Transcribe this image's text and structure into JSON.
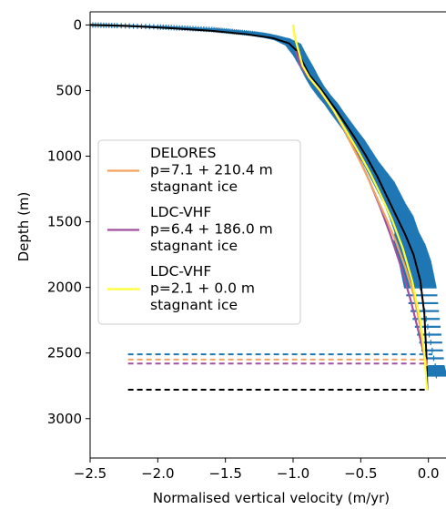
{
  "chart_data": {
    "type": "line",
    "xlabel": "Normalised vertical velocity (m/yr)",
    "ylabel": "Depth (m)",
    "xlim": [
      -2.5,
      0.13
    ],
    "ylim": [
      3300,
      -100
    ],
    "y_inverted": true,
    "x_ticks": [
      "−2.5",
      "−2.0",
      "−1.5",
      "−1.0",
      "−0.5",
      "0.0"
    ],
    "x_tick_values": [
      -2.5,
      -2.0,
      -1.5,
      -1.0,
      -0.5,
      0.0
    ],
    "y_ticks": [
      "0",
      "500",
      "1000",
      "1500",
      "2000",
      "2500",
      "3000"
    ],
    "y_tick_values": [
      0,
      500,
      1000,
      1500,
      2000,
      2500,
      3000
    ],
    "legend": {
      "placement": "center-left",
      "entries": [
        {
          "lines": [
            "DELORES",
            "p=7.1 + 210.4 m",
            "stagnant ice"
          ],
          "color": "#f4a460"
        },
        {
          "lines": [
            "LDC-VHF",
            "p=6.4 + 186.0 m",
            "stagnant ice"
          ],
          "color": "#a0509e"
        },
        {
          "lines": [
            "LDC-VHF",
            "p=2.1 + 0.0 m",
            "stagnant ice"
          ],
          "color": "#ffff33"
        }
      ]
    },
    "series": [
      {
        "style": "black solid",
        "color": "#000000",
        "x": [
          -2.5,
          -2.2,
          -1.9,
          -1.6,
          -1.35,
          -1.15,
          -1.03,
          -0.97,
          -0.93,
          -0.88,
          -0.8,
          -0.68,
          -0.55,
          -0.46,
          -0.38,
          -0.31,
          -0.24,
          -0.17,
          -0.11,
          -0.06,
          -0.03,
          -0.015,
          -0.008
        ],
        "y": [
          0,
          8,
          25,
          45,
          70,
          100,
          140,
          200,
          280,
          380,
          480,
          650,
          850,
          1000,
          1150,
          1300,
          1450,
          1600,
          1750,
          1950,
          2200,
          2500,
          2780
        ]
      },
      {
        "style": "delores orange",
        "color": "#f4a460",
        "x": [
          -1.0,
          -0.99,
          -0.96,
          -0.93,
          -0.88,
          -0.8,
          -0.7,
          -0.62,
          -0.56,
          -0.5,
          -0.44,
          -0.38,
          -0.31,
          -0.24,
          -0.17,
          -0.11,
          -0.06,
          -0.03,
          -0.01
        ],
        "y": [
          0,
          80,
          200,
          310,
          400,
          500,
          650,
          800,
          930,
          1050,
          1180,
          1320,
          1480,
          1650,
          1850,
          2050,
          2300,
          2520,
          2600
        ]
      },
      {
        "style": "ldc-vhf purple",
        "color": "#a0509e",
        "x": [
          -0.98,
          -0.95,
          -0.9,
          -0.82,
          -0.72,
          -0.62,
          -0.53,
          -0.44,
          -0.36,
          -0.28,
          -0.2,
          -0.13,
          -0.07,
          -0.03,
          -0.01
        ],
        "y": [
          200,
          300,
          380,
          480,
          620,
          800,
          980,
          1180,
          1380,
          1600,
          1850,
          2100,
          2350,
          2520,
          2580
        ]
      },
      {
        "style": "ldc-vhf yellow",
        "color": "#ffff33",
        "x": [
          -1.0,
          -0.99,
          -0.96,
          -0.93,
          -0.88,
          -0.8,
          -0.7,
          -0.6,
          -0.51,
          -0.43,
          -0.35,
          -0.27,
          -0.19,
          -0.12,
          -0.06,
          -0.03,
          -0.01
        ],
        "y": [
          0,
          80,
          200,
          310,
          400,
          500,
          650,
          820,
          980,
          1130,
          1300,
          1480,
          1700,
          1950,
          2250,
          2500,
          2780
        ]
      }
    ],
    "observations": {
      "color": "#1f77b4",
      "x": [
        -2.5,
        -2.3,
        -2.0,
        -1.8,
        -1.6,
        -1.45,
        -1.3,
        -1.18,
        -1.08,
        -1.0,
        -0.95,
        -0.9,
        -0.86,
        -0.82,
        -0.77,
        -0.72,
        -0.68,
        -0.63,
        -0.58,
        -0.53,
        -0.48,
        -0.43,
        -0.38,
        -0.33,
        -0.29,
        -0.25,
        -0.2,
        -0.16,
        -0.14,
        -0.1,
        -0.08,
        -0.06,
        0.05,
        0.06
      ],
      "y": [
        0,
        5,
        15,
        25,
        35,
        50,
        65,
        85,
        110,
        150,
        230,
        320,
        400,
        470,
        540,
        600,
        660,
        730,
        800,
        880,
        960,
        1040,
        1120,
        1200,
        1280,
        1360,
        1460,
        1580,
        1680,
        1800,
        1900,
        2000,
        2600,
        2680
      ],
      "xerr": [
        0.01,
        0.02,
        0.04,
        0.06,
        0.06,
        0.07,
        0.08,
        0.06,
        0.06,
        0.06,
        0.05,
        0.05,
        0.05,
        0.05,
        0.05,
        0.05,
        0.05,
        0.05,
        0.05,
        0.06,
        0.06,
        0.06,
        0.07,
        0.08,
        0.08,
        0.08,
        0.09,
        0.09,
        0.12,
        0.12,
        0.12,
        0.12,
        0.07,
        0.08
      ]
    },
    "horizontal_lines": [
      {
        "y": 2510,
        "color": "#1f77b4",
        "x_start": -2.22,
        "x_end": 0.03,
        "style": "dashed"
      },
      {
        "y": 2550,
        "color": "#f4a460",
        "x_start": -2.22,
        "x_end": 0.0,
        "style": "dashed"
      },
      {
        "y": 2580,
        "color": "#a0509e",
        "x_start": -2.22,
        "x_end": 0.0,
        "style": "dashed"
      },
      {
        "y": 2780,
        "color": "#000000",
        "x_start": -2.22,
        "x_end": 0.0,
        "style": "dashed"
      }
    ]
  }
}
